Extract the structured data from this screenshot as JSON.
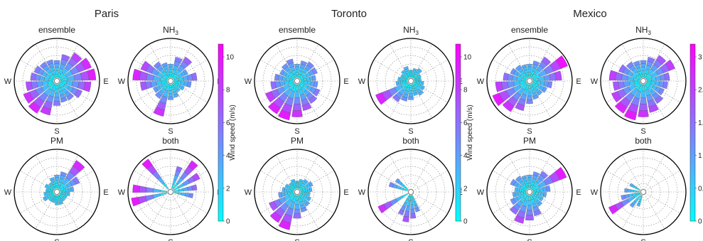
{
  "figure": {
    "cities": [
      {
        "name": "Paris"
      },
      {
        "name": "Toronto"
      },
      {
        "name": "Mexico"
      }
    ],
    "direction_labels": {
      "west": "W",
      "east": "E",
      "south": "S"
    },
    "colorbars": [
      {
        "label": "Wind speed (m/s)",
        "ticks": [
          "0",
          "2",
          "4",
          "6",
          "8",
          "10"
        ]
      },
      {
        "label": "Wind speed (m/s)",
        "ticks": [
          "0",
          "2",
          "4",
          "6",
          "8",
          "10"
        ]
      },
      {
        "label": "",
        "ticks": [
          "0",
          "0.",
          "1",
          "1.",
          "2.",
          "3"
        ]
      }
    ],
    "colors": {
      "low": "#00ffff",
      "high": "#ff00ff",
      "axis": "#000000",
      "grid": "#888888"
    }
  },
  "chart_data": [
    {
      "type": "polar-bar",
      "city": "Paris",
      "title": "ensemble",
      "sub": "",
      "vmax": 12,
      "dirs": [
        0,
        20,
        40,
        60,
        80,
        100,
        120,
        140,
        160,
        180,
        200,
        220,
        240,
        260,
        280,
        300,
        320,
        340
      ],
      "values": [
        0.45,
        0.62,
        0.78,
        0.88,
        0.93,
        0.8,
        0.62,
        0.5,
        0.48,
        0.55,
        0.82,
        0.9,
        0.85,
        0.72,
        0.6,
        0.55,
        0.5,
        0.48
      ]
    },
    {
      "type": "polar-bar",
      "city": "Paris",
      "title": "NH",
      "sub": "3",
      "vmax": 12,
      "dirs": [
        0,
        20,
        40,
        60,
        80,
        100,
        120,
        140,
        160,
        180,
        200,
        220,
        240,
        260,
        280,
        300,
        320,
        340
      ],
      "values": [
        0.35,
        0.55,
        0.65,
        0.4,
        0.6,
        0.45,
        0.3,
        0.25,
        0.35,
        0.4,
        0.85,
        0.45,
        0.4,
        0.7,
        0.9,
        0.75,
        0.5,
        0.4
      ]
    },
    {
      "type": "polar-bar",
      "city": "Toronto",
      "title": "ensemble",
      "sub": "",
      "vmax": 12,
      "dirs": [
        0,
        20,
        40,
        60,
        80,
        100,
        120,
        140,
        160,
        180,
        200,
        220,
        240,
        260,
        280,
        300,
        320,
        340
      ],
      "values": [
        0.35,
        0.45,
        0.5,
        0.48,
        0.4,
        0.45,
        0.55,
        0.6,
        0.7,
        0.85,
        0.95,
        0.92,
        0.8,
        0.6,
        0.5,
        0.4,
        0.45,
        0.5
      ]
    },
    {
      "type": "polar-bar",
      "city": "Toronto",
      "title": "NH",
      "sub": "3",
      "vmax": 12,
      "dirs": [
        0,
        20,
        40,
        60,
        80,
        100,
        120,
        140,
        160,
        180,
        200,
        220,
        240,
        260,
        280,
        300,
        320,
        340
      ],
      "values": [
        0.2,
        0.25,
        0.3,
        0.2,
        0.18,
        0.25,
        0.3,
        0.35,
        0.3,
        0.4,
        0.45,
        0.55,
        0.9,
        0.3,
        0.25,
        0.2,
        0.25,
        0.3
      ]
    },
    {
      "type": "polar-bar",
      "city": "Mexico",
      "title": "ensemble",
      "sub": "",
      "vmax": 12,
      "dirs": [
        0,
        20,
        40,
        60,
        80,
        100,
        120,
        140,
        160,
        180,
        200,
        220,
        240,
        260,
        280,
        300,
        320,
        340
      ],
      "values": [
        0.35,
        0.45,
        0.65,
        0.98,
        0.75,
        0.5,
        0.4,
        0.35,
        0.4,
        0.5,
        0.7,
        0.85,
        0.95,
        0.8,
        0.6,
        0.45,
        0.4,
        0.35
      ]
    },
    {
      "type": "polar-bar",
      "city": "Mexico",
      "title": "NH",
      "sub": "3",
      "vmax": 3.5,
      "dirs": [
        0,
        20,
        40,
        60,
        80,
        100,
        120,
        140,
        160,
        180,
        200,
        220,
        240,
        260,
        280,
        300,
        320,
        340
      ],
      "values": [
        0.45,
        0.55,
        0.7,
        0.8,
        0.6,
        0.55,
        0.5,
        0.6,
        0.75,
        0.85,
        0.95,
        0.9,
        0.8,
        0.7,
        0.8,
        0.6,
        0.5,
        0.45
      ]
    },
    {
      "type": "polar-bar",
      "city": "Paris",
      "title": "PM",
      "sub": "",
      "vmax": 12,
      "dirs": [
        0,
        20,
        40,
        60,
        80,
        100,
        120,
        140,
        160,
        180,
        200,
        220,
        240,
        260,
        280,
        300,
        320,
        340
      ],
      "values": [
        0.35,
        0.45,
        0.88,
        0.55,
        0.35,
        0.25,
        0.2,
        0.2,
        0.25,
        0.25,
        0.2,
        0.2,
        0.3,
        0.25,
        0.2,
        0.25,
        0.2,
        0.3
      ]
    },
    {
      "type": "polar-bar",
      "city": "Paris",
      "title": "both",
      "sub": "",
      "vmax": 12,
      "dirs": [
        20,
        40,
        60,
        80,
        100,
        255,
        275,
        320
      ],
      "values": [
        0.6,
        0.9,
        0.75,
        0.6,
        0.5,
        0.95,
        0.9,
        0.95
      ]
    },
    {
      "type": "polar-bar",
      "city": "Toronto",
      "title": "PM",
      "sub": "",
      "vmax": 12,
      "dirs": [
        0,
        20,
        40,
        60,
        80,
        100,
        120,
        140,
        160,
        180,
        200,
        220,
        240,
        260,
        280,
        300,
        320,
        340
      ],
      "values": [
        0.2,
        0.25,
        0.3,
        0.35,
        0.3,
        0.25,
        0.3,
        0.35,
        0.45,
        0.6,
        0.92,
        0.85,
        0.7,
        0.4,
        0.3,
        0.25,
        0.2,
        0.25
      ]
    },
    {
      "type": "polar-bar",
      "city": "Toronto",
      "title": "both",
      "sub": "",
      "vmax": 12,
      "dirs": [
        160,
        175,
        190,
        205,
        240,
        290,
        310
      ],
      "values": [
        0.45,
        0.6,
        0.7,
        0.55,
        0.85,
        0.5,
        0.4
      ]
    },
    {
      "type": "polar-bar",
      "city": "Mexico",
      "title": "PM",
      "sub": "",
      "vmax": 12,
      "dirs": [
        0,
        20,
        40,
        60,
        80,
        100,
        120,
        140,
        160,
        180,
        200,
        220,
        240,
        260,
        280,
        300,
        320,
        340
      ],
      "values": [
        0.35,
        0.45,
        0.55,
        0.95,
        0.45,
        0.35,
        0.3,
        0.35,
        0.55,
        0.65,
        0.75,
        0.6,
        0.45,
        0.35,
        0.3,
        0.45,
        0.4,
        0.35
      ]
    },
    {
      "type": "polar-bar",
      "city": "Mexico",
      "title": "both",
      "sub": "",
      "vmax": 3.5,
      "dirs": [
        200,
        220,
        240,
        255,
        275,
        300
      ],
      "values": [
        0.3,
        0.4,
        0.9,
        0.5,
        0.4,
        0.3
      ]
    }
  ]
}
